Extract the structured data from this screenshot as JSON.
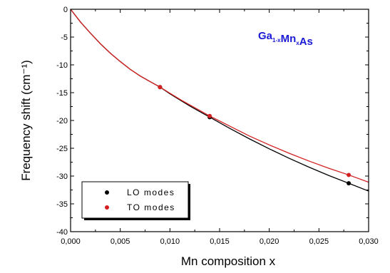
{
  "chart_data": {
    "type": "line",
    "title": "",
    "annotation": {
      "parts": [
        {
          "text": "Ga",
          "sub": false
        },
        {
          "text": "1-x",
          "sub": true
        },
        {
          "text": "Mn",
          "sub": false
        },
        {
          "text": "x",
          "sub": true
        },
        {
          "text": "As",
          "sub": false
        }
      ],
      "color": "#1a1ad6"
    },
    "xlabel": "Mn composition x",
    "ylabel": "Frequency shift (cm⁻¹)",
    "xlim": [
      0,
      0.03
    ],
    "ylim": [
      -40,
      0
    ],
    "xticks": [
      0,
      0.005,
      0.01,
      0.015,
      0.02,
      0.025,
      0.03
    ],
    "xtick_labels": [
      "0,000",
      "0,005",
      "0,010",
      "0,015",
      "0,020",
      "0,025",
      "0,030"
    ],
    "yticks": [
      0,
      -5,
      -10,
      -15,
      -20,
      -25,
      -30,
      -35,
      -40
    ],
    "ytick_labels": [
      "0",
      "-5",
      "-10",
      "-15",
      "-20",
      "-25",
      "-30",
      "-35",
      "-40"
    ],
    "grid": false,
    "legend_position": "bottom-left",
    "series": [
      {
        "name": "LO modes",
        "color": "#000000",
        "points": [
          [
            0,
            0
          ],
          [
            0.009,
            -14.0
          ],
          [
            0.014,
            -19.4
          ],
          [
            0.028,
            -31.3
          ]
        ],
        "curve": [
          [
            0,
            0
          ],
          [
            0.001,
            -2.3
          ],
          [
            0.002,
            -4.3
          ],
          [
            0.003,
            -6.2
          ],
          [
            0.004,
            -7.9
          ],
          [
            0.005,
            -9.4
          ],
          [
            0.006,
            -10.8
          ],
          [
            0.007,
            -12.0
          ],
          [
            0.008,
            -13.0
          ],
          [
            0.009,
            -14.0
          ],
          [
            0.01,
            -15.2
          ],
          [
            0.011,
            -16.3
          ],
          [
            0.012,
            -17.4
          ],
          [
            0.013,
            -18.4
          ],
          [
            0.014,
            -19.4
          ],
          [
            0.016,
            -21.4
          ],
          [
            0.018,
            -23.3
          ],
          [
            0.02,
            -25.1
          ],
          [
            0.022,
            -26.8
          ],
          [
            0.024,
            -28.4
          ],
          [
            0.026,
            -29.9
          ],
          [
            0.028,
            -31.3
          ],
          [
            0.03,
            -32.7
          ]
        ]
      },
      {
        "name": "TO modes",
        "color": "#d42020",
        "points": [
          [
            0,
            0
          ],
          [
            0.009,
            -14.0
          ],
          [
            0.014,
            -19.2
          ],
          [
            0.028,
            -29.8
          ]
        ],
        "curve": [
          [
            0,
            0
          ],
          [
            0.001,
            -2.3
          ],
          [
            0.002,
            -4.3
          ],
          [
            0.003,
            -6.2
          ],
          [
            0.004,
            -7.9
          ],
          [
            0.005,
            -9.4
          ],
          [
            0.006,
            -10.8
          ],
          [
            0.007,
            -12.0
          ],
          [
            0.008,
            -13.0
          ],
          [
            0.009,
            -14.0
          ],
          [
            0.01,
            -15.1
          ],
          [
            0.011,
            -16.2
          ],
          [
            0.012,
            -17.2
          ],
          [
            0.013,
            -18.2
          ],
          [
            0.014,
            -19.2
          ],
          [
            0.016,
            -21.0
          ],
          [
            0.018,
            -22.8
          ],
          [
            0.02,
            -24.4
          ],
          [
            0.022,
            -25.9
          ],
          [
            0.024,
            -27.3
          ],
          [
            0.026,
            -28.6
          ],
          [
            0.028,
            -29.8
          ],
          [
            0.03,
            -31.1
          ]
        ]
      }
    ]
  }
}
